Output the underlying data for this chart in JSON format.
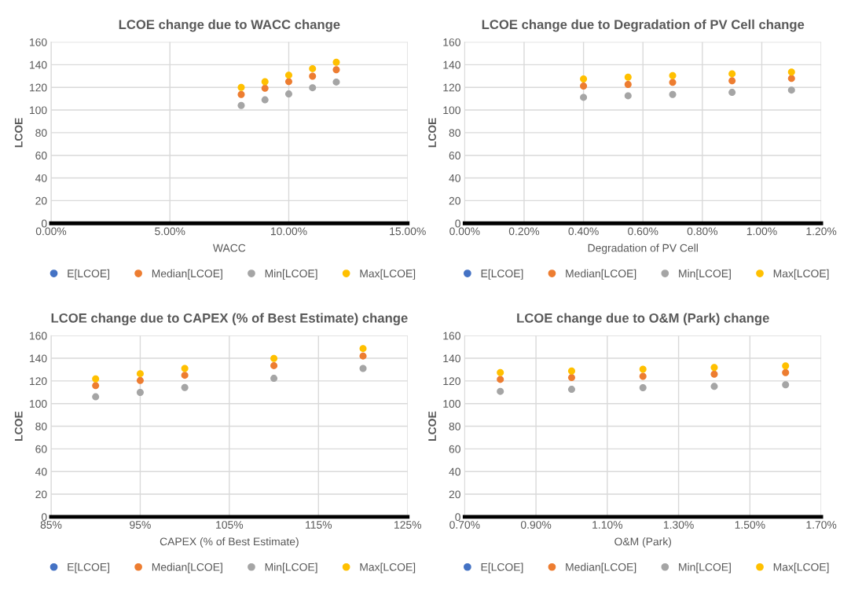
{
  "chart_data": [
    {
      "type": "scatter",
      "title": "LCOE change due to WACC change",
      "xlabel": "WACC",
      "ylabel": "LCOE",
      "x": [
        8,
        9,
        10,
        11,
        12
      ],
      "series": [
        {
          "name": "E[LCOE]",
          "color": "#4472c4",
          "values": [
            null,
            null,
            null,
            null,
            null
          ]
        },
        {
          "name": "Median[LCOE]",
          "color": "#ed7d31",
          "values": [
            113.7,
            119.2,
            125.1,
            129.9,
            135.6
          ]
        },
        {
          "name": "Min[LCOE]",
          "color": "#a5a5a5",
          "values": [
            104,
            109,
            114.2,
            119.7,
            124.7
          ]
        },
        {
          "name": "Max[LCOE]",
          "color": "#ffc000",
          "values": [
            120,
            125,
            130.8,
            136.5,
            142.2
          ]
        }
      ],
      "xlim": [
        0,
        15
      ],
      "xticks": [
        {
          "value": 0,
          "label": "0.00%"
        },
        {
          "value": 5,
          "label": "5.00%"
        },
        {
          "value": 10,
          "label": "10.00%"
        },
        {
          "value": 15,
          "label": "15.00%"
        }
      ],
      "ylim": [
        0,
        160
      ],
      "yticks": [
        0,
        20,
        40,
        60,
        80,
        100,
        120,
        140,
        160
      ],
      "grid": true,
      "legend": "bottom",
      "marker": "circle"
    },
    {
      "type": "scatter",
      "title": "LCOE change due to Degradation of PV Cell change",
      "xlabel": "Degradation of PV Cell",
      "ylabel": "LCOE",
      "x": [
        0.4,
        0.55,
        0.7,
        0.9,
        1.1
      ],
      "series": [
        {
          "name": "E[LCOE]",
          "color": "#4472c4",
          "values": [
            null,
            null,
            null,
            null,
            null
          ]
        },
        {
          "name": "Median[LCOE]",
          "color": "#ed7d31",
          "values": [
            121.2,
            122.6,
            124.4,
            125.8,
            127.9
          ]
        },
        {
          "name": "Min[LCOE]",
          "color": "#a5a5a5",
          "values": [
            111.2,
            112.6,
            113.7,
            115.6,
            117.6
          ]
        },
        {
          "name": "Max[LCOE]",
          "color": "#ffc000",
          "values": [
            127.4,
            129,
            130.4,
            132,
            133.5
          ]
        }
      ],
      "xlim": [
        0,
        1.2
      ],
      "xticks": [
        {
          "value": 0,
          "label": "0.00%"
        },
        {
          "value": 0.2,
          "label": "0.20%"
        },
        {
          "value": 0.4,
          "label": "0.40%"
        },
        {
          "value": 0.6,
          "label": "0.60%"
        },
        {
          "value": 0.8,
          "label": "0.80%"
        },
        {
          "value": 1.0,
          "label": "1.00%"
        },
        {
          "value": 1.2,
          "label": "1.20%"
        }
      ],
      "ylim": [
        0,
        160
      ],
      "yticks": [
        0,
        20,
        40,
        60,
        80,
        100,
        120,
        140,
        160
      ],
      "grid": true,
      "legend": "bottom",
      "marker": "circle"
    },
    {
      "type": "scatter",
      "title": "LCOE change due to CAPEX (% of Best Estimate) change",
      "xlabel": "CAPEX (% of Best Estimate)",
      "ylabel": "LCOE",
      "x": [
        90,
        95,
        100,
        110,
        120
      ],
      "series": [
        {
          "name": "E[LCOE]",
          "color": "#4472c4",
          "values": [
            null,
            null,
            null,
            null,
            null
          ]
        },
        {
          "name": "Median[LCOE]",
          "color": "#ed7d31",
          "values": [
            115.9,
            120.4,
            125,
            133.5,
            142
          ]
        },
        {
          "name": "Min[LCOE]",
          "color": "#a5a5a5",
          "values": [
            106,
            109.9,
            114.2,
            122.3,
            131
          ]
        },
        {
          "name": "Max[LCOE]",
          "color": "#ffc000",
          "values": [
            121.8,
            126.4,
            131,
            139.9,
            148.6
          ]
        }
      ],
      "xlim": [
        85,
        125
      ],
      "xticks": [
        {
          "value": 85,
          "label": "85%"
        },
        {
          "value": 95,
          "label": "95%"
        },
        {
          "value": 105,
          "label": "105%"
        },
        {
          "value": 115,
          "label": "115%"
        },
        {
          "value": 125,
          "label": "125%"
        }
      ],
      "ylim": [
        0,
        160
      ],
      "yticks": [
        0,
        20,
        40,
        60,
        80,
        100,
        120,
        140,
        160
      ],
      "grid": true,
      "legend": "bottom",
      "marker": "circle"
    },
    {
      "type": "scatter",
      "title": "LCOE change due to O&M (Park) change",
      "xlabel": "O&M (Park)",
      "ylabel": "LCOE",
      "x": [
        0.8,
        1.0,
        1.2,
        1.4,
        1.6
      ],
      "series": [
        {
          "name": "E[LCOE]",
          "color": "#4472c4",
          "values": [
            null,
            null,
            null,
            null,
            null
          ]
        },
        {
          "name": "Median[LCOE]",
          "color": "#ed7d31",
          "values": [
            121.4,
            123,
            124.1,
            126,
            127.4
          ]
        },
        {
          "name": "Min[LCOE]",
          "color": "#a5a5a5",
          "values": [
            110.8,
            112.6,
            114,
            115.2,
            116.6
          ]
        },
        {
          "name": "Max[LCOE]",
          "color": "#ffc000",
          "values": [
            127.4,
            128.8,
            130.3,
            131.9,
            133.3
          ]
        }
      ],
      "xlim": [
        0.7,
        1.7
      ],
      "xticks": [
        {
          "value": 0.7,
          "label": "0.70%"
        },
        {
          "value": 0.9,
          "label": "0.90%"
        },
        {
          "value": 1.1,
          "label": "1.10%"
        },
        {
          "value": 1.3,
          "label": "1.30%"
        },
        {
          "value": 1.5,
          "label": "1.50%"
        },
        {
          "value": 1.7,
          "label": "1.70%"
        }
      ],
      "ylim": [
        0,
        160
      ],
      "yticks": [
        0,
        20,
        40,
        60,
        80,
        100,
        120,
        140,
        160
      ],
      "grid": true,
      "legend": "bottom",
      "marker": "circle"
    }
  ]
}
